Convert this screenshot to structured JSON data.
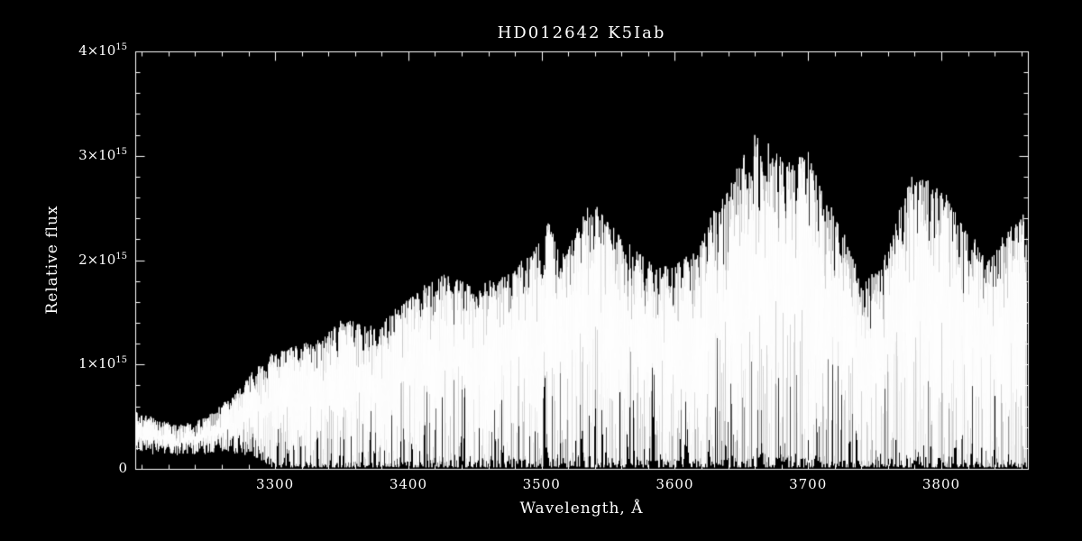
{
  "figure": {
    "background": "#000000",
    "foreground": "#ffffff"
  },
  "chart_data": {
    "type": "line",
    "subtype": "stellar-spectrum",
    "title": "HD012642  K5Iab",
    "xlabel": "Wavelength, Å",
    "ylabel": "Relative flux",
    "xlim": [
      3195,
      3865
    ],
    "ylim": [
      0,
      4000000000000000.0
    ],
    "ylim_1e15": [
      0,
      4
    ],
    "grid": false,
    "frame": "box with inward major and minor ticks on all four sides",
    "x_major_ticks": [
      3300,
      3400,
      3500,
      3600,
      3700,
      3800
    ],
    "x_tick_labels": [
      "3300",
      "3400",
      "3500",
      "3600",
      "3700",
      "3800"
    ],
    "x_minor_step": 20,
    "y_major_ticks_1e15": [
      0,
      1,
      2,
      3,
      4
    ],
    "y_tick_labels": [
      {
        "base": "0",
        "exp": ""
      },
      {
        "base": "1×10",
        "exp": "15"
      },
      {
        "base": "2×10",
        "exp": "15"
      },
      {
        "base": "3×10",
        "exp": "15"
      },
      {
        "base": "4×10",
        "exp": "15"
      }
    ],
    "y_minor_step_1e15": 0.2,
    "series": [
      {
        "name": "HD012642 near-UV spectrum",
        "style": "dense noisy spikes, white line on black background",
        "upper_envelope": {
          "wavelength_A": [
            3195,
            3210,
            3225,
            3240,
            3255,
            3270,
            3285,
            3300,
            3315,
            3330,
            3345,
            3360,
            3375,
            3390,
            3405,
            3420,
            3435,
            3450,
            3465,
            3480,
            3495,
            3505,
            3515,
            3530,
            3540,
            3555,
            3570,
            3585,
            3600,
            3615,
            3630,
            3645,
            3660,
            3672,
            3685,
            3700,
            3712,
            3725,
            3740,
            3755,
            3770,
            3780,
            3792,
            3805,
            3820,
            3835,
            3850,
            3865
          ],
          "flux_1e15": [
            0.55,
            0.48,
            0.42,
            0.45,
            0.55,
            0.72,
            0.95,
            1.12,
            1.18,
            1.22,
            1.38,
            1.42,
            1.35,
            1.55,
            1.68,
            1.78,
            1.88,
            1.72,
            1.8,
            1.92,
            2.1,
            2.4,
            2.05,
            2.4,
            2.52,
            2.3,
            2.12,
            1.95,
            1.95,
            2.1,
            2.45,
            2.85,
            3.2,
            3.1,
            2.9,
            3.05,
            2.6,
            2.4,
            1.75,
            1.95,
            2.55,
            2.88,
            2.72,
            2.58,
            2.25,
            2.0,
            2.3,
            2.45
          ]
        },
        "lower_envelope_note": "absorption features reach near zero flux over most of the range; shallower noise band of about 0.15-0.55e15 at the blue end below 3280 A"
      }
    ]
  }
}
